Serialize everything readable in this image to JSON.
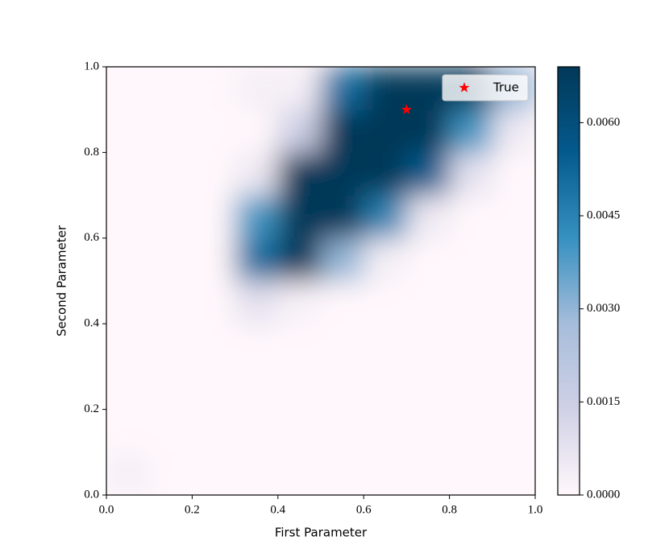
{
  "chart_data": {
    "type": "heatmap",
    "xlabel": "First Parameter",
    "ylabel": "Second Parameter",
    "xlim": [
      0,
      1
    ],
    "ylim": [
      0,
      1
    ],
    "xticks": [
      {
        "value": 0,
        "label": "0.0"
      },
      0.2,
      0.4,
      0.6,
      0.8,
      {
        "value": 1,
        "label": "1.0"
      }
    ],
    "yticks": [
      {
        "value": 0,
        "label": "0.0"
      },
      0.2,
      0.4,
      0.6,
      0.8,
      {
        "value": 1,
        "label": "1.0"
      }
    ],
    "x": [
      0.05,
      0.15,
      0.25,
      0.35,
      0.45,
      0.55,
      0.65,
      0.75,
      0.85,
      0.95
    ],
    "y": [
      0.05,
      0.15,
      0.25,
      0.35,
      0.45,
      0.55,
      0.65,
      0.75,
      0.85,
      0.95
    ],
    "z": [
      [
        0.0003,
        0,
        0,
        0,
        0,
        0,
        0,
        0,
        0,
        0
      ],
      [
        0,
        0,
        0,
        0,
        0,
        0,
        0,
        0,
        0,
        0
      ],
      [
        0,
        0,
        0,
        0,
        0,
        0,
        0,
        0,
        0,
        0
      ],
      [
        0,
        0,
        0,
        0,
        0,
        0,
        0,
        0,
        0,
        0
      ],
      [
        0,
        0,
        0,
        0.0008,
        0.0002,
        0,
        0,
        0,
        0,
        0
      ],
      [
        0,
        0,
        0,
        0.005,
        0.0069,
        0.003,
        0.0003,
        0,
        0,
        0
      ],
      [
        0,
        0,
        0,
        0.004,
        0.0069,
        0.0069,
        0.0045,
        0.0005,
        0,
        0
      ],
      [
        0,
        0,
        0,
        0.0005,
        0.0069,
        0.0069,
        0.0069,
        0.0055,
        0.0008,
        0
      ],
      [
        0,
        0,
        0,
        0,
        0.0015,
        0.0069,
        0.0069,
        0.0069,
        0.004,
        0.0005
      ],
      [
        0,
        0,
        0,
        0.0003,
        0.0003,
        0.005,
        0.0069,
        0.0069,
        0.0069,
        0.003
      ]
    ],
    "colormap": [
      "#fff7fb",
      "#d0d1e6",
      "#a6bddb",
      "#3690c0",
      "#045a8d",
      "#023858"
    ],
    "clim": [
      0,
      0.0069
    ],
    "cticks": [
      {
        "value": 0,
        "label": "0.0000"
      },
      {
        "value": 0.0015,
        "label": "0.0015"
      },
      {
        "value": 0.003,
        "label": "0.0030"
      },
      {
        "value": 0.0045,
        "label": "0.0045"
      },
      {
        "value": 0.006,
        "label": "0.0060"
      }
    ],
    "series": [
      {
        "name": "True",
        "color": "#ff0000",
        "marker": "star",
        "x": [
          0.7
        ],
        "y": [
          0.9
        ]
      }
    ],
    "legend": "upper right"
  }
}
